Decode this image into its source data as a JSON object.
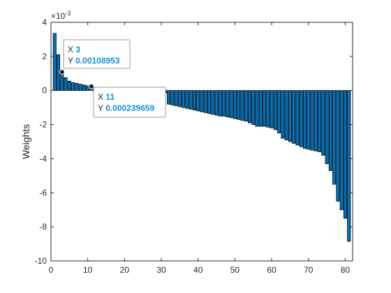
{
  "chart_data": {
    "type": "bar",
    "title": "",
    "xlabel": "",
    "ylabel": "Weights",
    "y_exponent_label": "×10",
    "y_exponent": "-3",
    "xlim": [
      0,
      82
    ],
    "ylim": [
      -10,
      4
    ],
    "xticks": [
      0,
      10,
      20,
      30,
      40,
      50,
      60,
      70,
      80
    ],
    "yticks": [
      -10,
      -8,
      -6,
      -4,
      -2,
      0,
      2,
      4
    ],
    "grid": false,
    "bar_color": "#0072bd",
    "bar_edge_color": "#000000",
    "x": [
      1,
      2,
      3,
      4,
      5,
      6,
      7,
      8,
      9,
      10,
      11,
      12,
      13,
      14,
      15,
      16,
      17,
      18,
      19,
      20,
      21,
      22,
      23,
      24,
      25,
      26,
      27,
      28,
      29,
      30,
      31,
      32,
      33,
      34,
      35,
      36,
      37,
      38,
      39,
      40,
      41,
      42,
      43,
      44,
      45,
      46,
      47,
      48,
      49,
      50,
      51,
      52,
      53,
      54,
      55,
      56,
      57,
      58,
      59,
      60,
      61,
      62,
      63,
      64,
      65,
      66,
      67,
      68,
      69,
      70,
      71,
      72,
      73,
      74,
      75,
      76,
      77,
      78,
      79,
      80,
      81
    ],
    "values": [
      3.35,
      2.1,
      1.09,
      0.75,
      0.55,
      0.47,
      0.42,
      0.37,
      0.32,
      0.28,
      0.24,
      0.15,
      0.09,
      0.06,
      0.04,
      0.03,
      0.02,
      0.02,
      0.01,
      0.01,
      0.01,
      0.0,
      0.0,
      0.0,
      0.0,
      0.0,
      0.0,
      0.0,
      0.0,
      -0.05,
      -0.15,
      -0.8,
      -0.85,
      -0.9,
      -0.95,
      -1.0,
      -1.05,
      -1.1,
      -1.15,
      -1.2,
      -1.25,
      -1.3,
      -1.35,
      -1.4,
      -1.45,
      -1.5,
      -1.5,
      -1.55,
      -1.6,
      -1.65,
      -1.7,
      -1.75,
      -1.8,
      -1.9,
      -2.0,
      -2.1,
      -2.1,
      -2.1,
      -2.15,
      -2.2,
      -2.3,
      -2.5,
      -2.8,
      -2.9,
      -3.0,
      -3.1,
      -3.2,
      -3.3,
      -3.4,
      -3.45,
      -3.5,
      -3.55,
      -3.6,
      -3.8,
      -4.3,
      -4.7,
      -5.5,
      -6.5,
      -7.0,
      -7.5,
      -8.85
    ]
  },
  "datatips": [
    {
      "x_label": "X",
      "x_value": "3",
      "y_label": "Y",
      "y_value": "0.00108953",
      "point_x": 3,
      "point_y": 1.09
    },
    {
      "x_label": "X",
      "x_value": "11",
      "y_label": "Y",
      "y_value": "0.000239659",
      "point_x": 11,
      "point_y": 0.24
    }
  ]
}
